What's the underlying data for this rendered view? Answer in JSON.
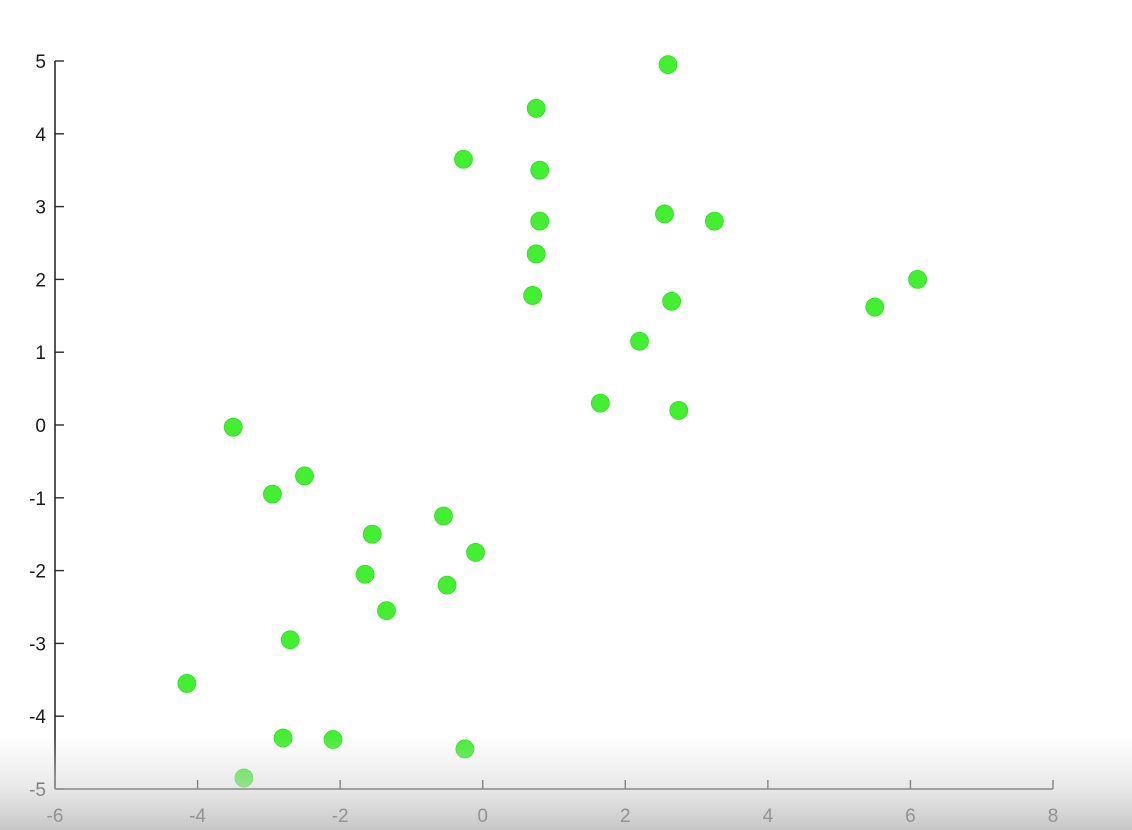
{
  "chart_data": {
    "type": "scatter",
    "title": "",
    "xlabel": "",
    "ylabel": "",
    "xlim": [
      -6,
      8
    ],
    "ylim": [
      -5,
      5
    ],
    "x_ticks": [
      -6,
      -4,
      -2,
      0,
      2,
      4,
      6,
      8
    ],
    "y_ticks": [
      -5,
      -4,
      -3,
      -2,
      -1,
      0,
      1,
      2,
      3,
      4,
      5
    ],
    "x_tick_labels": [
      "-6",
      "-4",
      "-2",
      "0",
      "2",
      "4",
      "6",
      "8"
    ],
    "y_tick_labels": [
      "-5",
      "-4",
      "-3",
      "-2",
      "-1",
      "0",
      "1",
      "2",
      "3",
      "4",
      "5"
    ],
    "grid": false,
    "legend": "none",
    "marker_color": "#44ee33",
    "series": [
      {
        "points": [
          [
            2.6,
            4.95
          ],
          [
            0.75,
            4.35
          ],
          [
            -0.27,
            3.65
          ],
          [
            0.8,
            3.5
          ],
          [
            0.8,
            2.8
          ],
          [
            2.55,
            2.9
          ],
          [
            3.25,
            2.8
          ],
          [
            0.75,
            2.35
          ],
          [
            6.1,
            2.0
          ],
          [
            0.7,
            1.78
          ],
          [
            2.65,
            1.7
          ],
          [
            5.5,
            1.62
          ],
          [
            2.2,
            1.15
          ],
          [
            1.65,
            0.3
          ],
          [
            2.75,
            0.2
          ],
          [
            -3.5,
            -0.03
          ],
          [
            -2.5,
            -0.7
          ],
          [
            -2.95,
            -0.95
          ],
          [
            -0.55,
            -1.25
          ],
          [
            -1.55,
            -1.5
          ],
          [
            -0.1,
            -1.75
          ],
          [
            -1.65,
            -2.05
          ],
          [
            -0.5,
            -2.2
          ],
          [
            -1.35,
            -2.55
          ],
          [
            -2.7,
            -2.95
          ],
          [
            -4.15,
            -3.55
          ],
          [
            -2.8,
            -4.3
          ],
          [
            -2.1,
            -4.32
          ],
          [
            -0.25,
            -4.45
          ],
          [
            -3.35,
            -4.85
          ]
        ]
      }
    ]
  }
}
